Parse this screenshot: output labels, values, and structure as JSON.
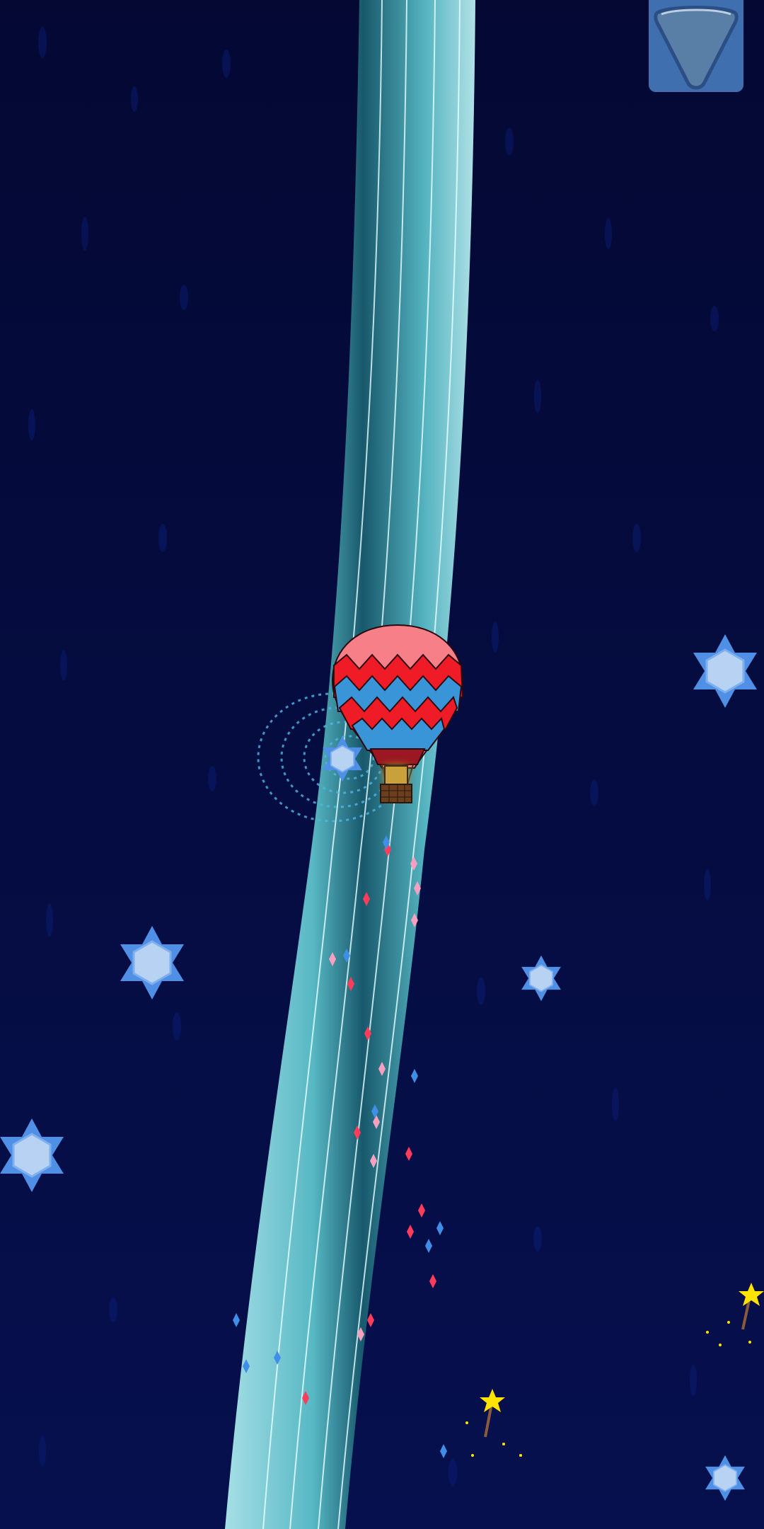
{
  "colors": {
    "background_top": "#040833",
    "background_bottom": "#06104e",
    "beam": "#8fe6ea",
    "beam_core": "#1c6c7a",
    "star_outer": "#4f8fe6",
    "star_inner": "#b8d2f3",
    "balloon_red": "#ef1c28",
    "balloon_pink": "#f77f88",
    "balloon_blue": "#3a94d8",
    "basket": "#6b3e1e",
    "sparkle_yellow": "#ffe300",
    "menu_button": "#3f6fae"
  },
  "icons": {
    "menu_button": "triangle-down-icon",
    "player": "hot-air-balloon-icon",
    "collectible": "hexagram-gem-icon",
    "magic_wand": "star-wand-icon"
  }
}
